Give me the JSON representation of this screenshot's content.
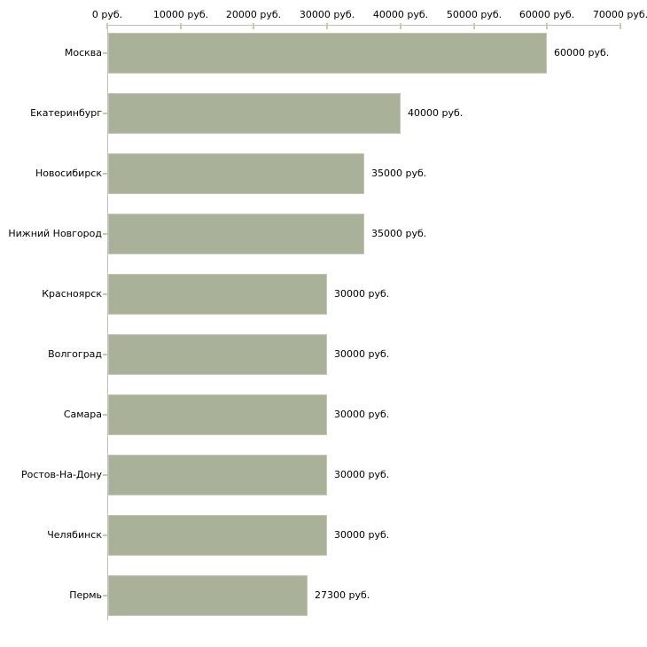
{
  "chart_data": {
    "type": "bar",
    "orientation": "horizontal",
    "title": "",
    "xlabel": "",
    "ylabel": "",
    "unit": "руб.",
    "grid": false,
    "legend": false,
    "xlim": [
      0,
      70000
    ],
    "categories": [
      "Москва",
      "Екатеринбург",
      "Новосибирск",
      "Нижний Новгород",
      "Красноярск",
      "Волгоград",
      "Самара",
      "Ростов-На-Дону",
      "Челябинск",
      "Пермь"
    ],
    "values": [
      60000,
      40000,
      35000,
      35000,
      30000,
      30000,
      30000,
      30000,
      30000,
      27300
    ],
    "bar_labels": [
      "60000 руб.",
      "40000 руб.",
      "35000 руб.",
      "35000 руб.",
      "30000 руб.",
      "30000 руб.",
      "30000 руб.",
      "30000 руб.",
      "30000 руб.",
      "27300 руб."
    ],
    "x_tick_values": [
      0,
      10000,
      20000,
      30000,
      40000,
      50000,
      60000,
      70000
    ],
    "x_tick_labels": [
      "0 руб.",
      "10000 руб.",
      "20000 руб.",
      "30000 руб.",
      "40000 руб.",
      "50000 руб.",
      "60000 руб.",
      "70000 руб."
    ],
    "colors": {
      "bar_fill": "#aab199",
      "bar_border": "#c3c7b4",
      "axis_line": "#c0c0c0",
      "tick": "#cccc99",
      "text": "#000000",
      "background": "#ffffff"
    }
  }
}
